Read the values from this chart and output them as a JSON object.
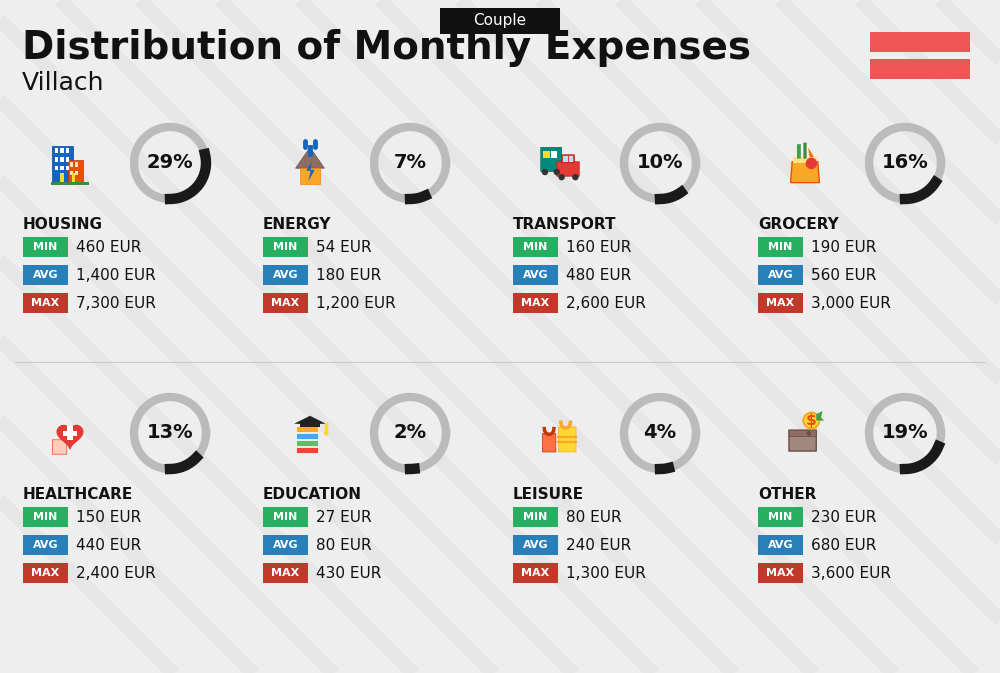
{
  "title": "Distribution of Monthly Expenses",
  "subtitle": "Villach",
  "badge": "Couple",
  "bg_color": "#eeeeee",
  "title_color": "#111111",
  "badge_bg": "#111111",
  "badge_fg": "#ffffff",
  "categories": [
    {
      "name": "HOUSING",
      "pct": 29,
      "min": "460 EUR",
      "avg": "1,400 EUR",
      "max": "7,300 EUR",
      "row": 0,
      "col": 0
    },
    {
      "name": "ENERGY",
      "pct": 7,
      "min": "54 EUR",
      "avg": "180 EUR",
      "max": "1,200 EUR",
      "row": 0,
      "col": 1
    },
    {
      "name": "TRANSPORT",
      "pct": 10,
      "min": "160 EUR",
      "avg": "480 EUR",
      "max": "2,600 EUR",
      "row": 0,
      "col": 2
    },
    {
      "name": "GROCERY",
      "pct": 16,
      "min": "190 EUR",
      "avg": "560 EUR",
      "max": "3,000 EUR",
      "row": 0,
      "col": 3
    },
    {
      "name": "HEALTHCARE",
      "pct": 13,
      "min": "150 EUR",
      "avg": "440 EUR",
      "max": "2,400 EUR",
      "row": 1,
      "col": 0
    },
    {
      "name": "EDUCATION",
      "pct": 2,
      "min": "27 EUR",
      "avg": "80 EUR",
      "max": "430 EUR",
      "row": 1,
      "col": 1
    },
    {
      "name": "LEISURE",
      "pct": 4,
      "min": "80 EUR",
      "avg": "240 EUR",
      "max": "1,300 EUR",
      "row": 1,
      "col": 2
    },
    {
      "name": "OTHER",
      "pct": 19,
      "min": "230 EUR",
      "avg": "680 EUR",
      "max": "3,600 EUR",
      "row": 1,
      "col": 3
    }
  ],
  "min_color": "#27ae60",
  "avg_color": "#2980b9",
  "max_color": "#c0392b",
  "label_fg": "#ffffff",
  "value_color": "#111111",
  "arc_filled_color": "#1a1a1a",
  "arc_empty_color": "#bbbbbb",
  "category_label_color": "#111111",
  "flag_color": "#f05555",
  "stripe_color": "#d0d0d0"
}
